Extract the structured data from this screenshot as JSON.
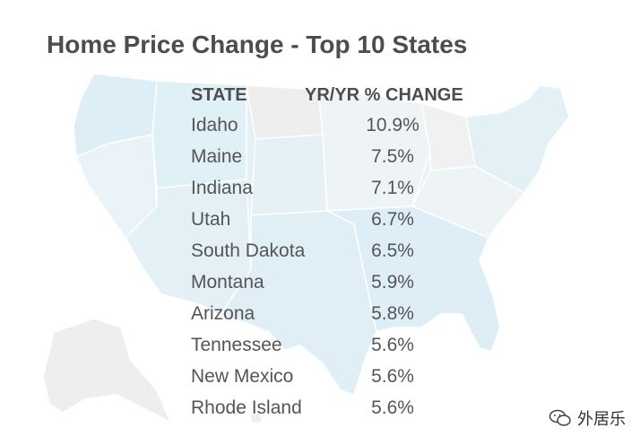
{
  "chart_data": {
    "type": "table",
    "title": "Home Price Change - Top 10 States",
    "columns": [
      "STATE",
      "YR/YR % CHANGE"
    ],
    "categories": [
      "Idaho",
      "Maine",
      "Indiana",
      "Utah",
      "South Dakota",
      "Montana",
      "Arizona",
      "Tennessee",
      "New Mexico",
      "Rhode Island"
    ],
    "values": [
      "10.9%",
      "7.5%",
      "7.1%",
      "6.7%",
      "6.5%",
      "5.9%",
      "5.8%",
      "5.6%",
      "5.6%",
      "5.6%"
    ],
    "unit": "%"
  },
  "watermark": {
    "text": "外居乐",
    "icon": "wechat-icon"
  },
  "colors": {
    "map_fill": "#e6f1f6",
    "map_fill_alt": "#ddeef6",
    "map_neutral": "#eeeeee",
    "map_border": "#ffffff",
    "text": "#555555",
    "title": "#4d4d4d"
  }
}
